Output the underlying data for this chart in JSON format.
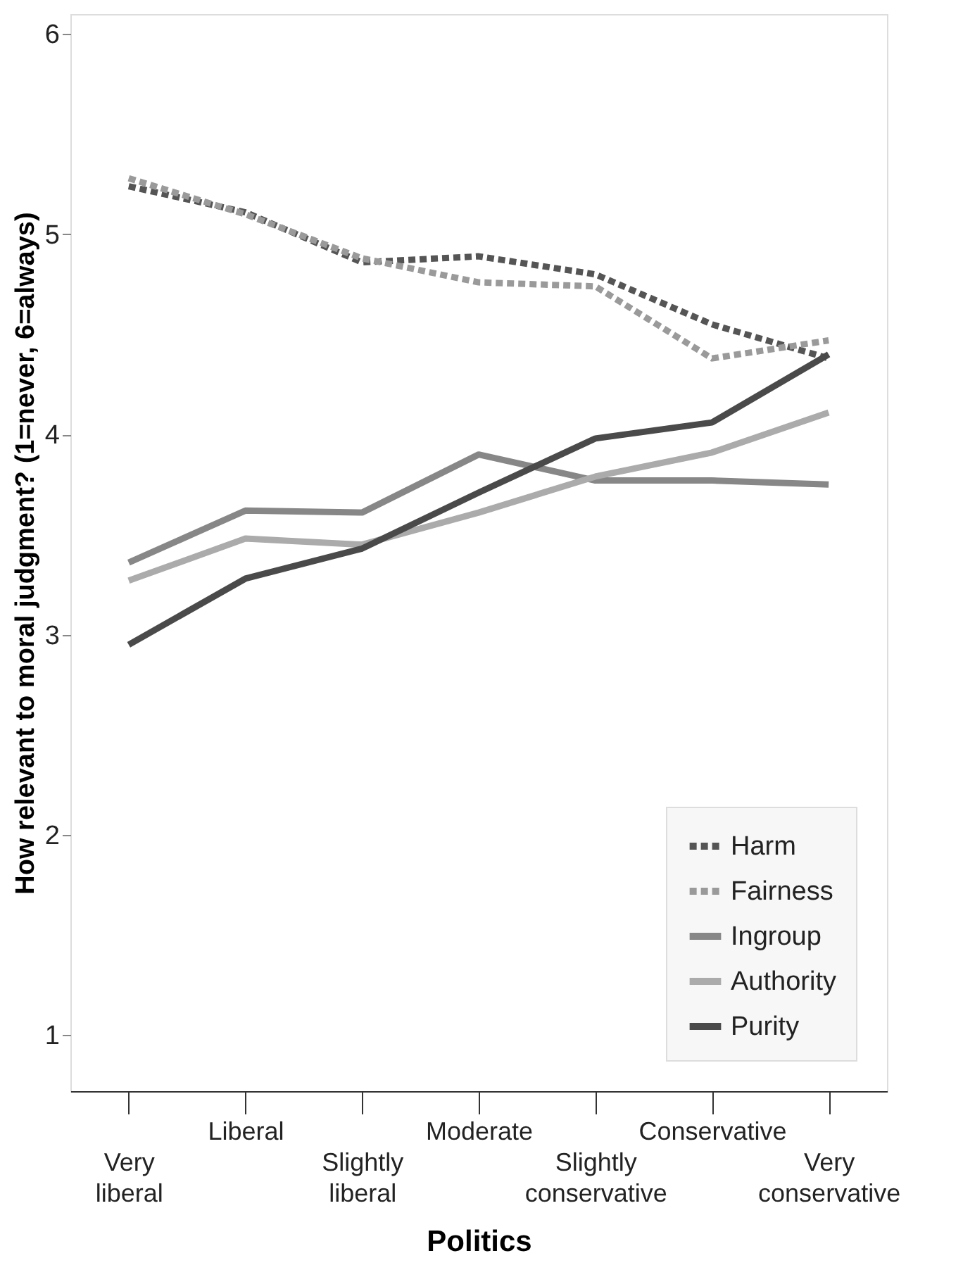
{
  "chart_data": {
    "type": "line",
    "xlabel": "Politics",
    "ylabel": "How relevant to moral judgment? (1=never, 6=always)",
    "categories": [
      "Very liberal",
      "Liberal",
      "Slightly liberal",
      "Moderate",
      "Slightly conservative",
      "Conservative",
      "Very conservative"
    ],
    "series": [
      {
        "name": "Harm",
        "color": "#555555",
        "line_style": "dotted",
        "values": [
          5.24,
          5.11,
          4.86,
          4.89,
          4.8,
          4.55,
          4.38
        ]
      },
      {
        "name": "Fairness",
        "color": "#9a9a9a",
        "line_style": "dotted",
        "values": [
          5.28,
          5.1,
          4.88,
          4.76,
          4.74,
          4.38,
          4.47
        ]
      },
      {
        "name": "Ingroup",
        "color": "#878787",
        "line_style": "solid",
        "values": [
          3.36,
          3.62,
          3.61,
          3.9,
          3.77,
          3.77,
          3.75
        ]
      },
      {
        "name": "Authority",
        "color": "#ababab",
        "line_style": "solid",
        "values": [
          3.27,
          3.48,
          3.45,
          3.61,
          3.79,
          3.91,
          4.11
        ]
      },
      {
        "name": "Purity",
        "color": "#4a4a4a",
        "line_style": "solid",
        "values": [
          2.95,
          3.28,
          3.43,
          3.71,
          3.98,
          4.06,
          4.4
        ]
      }
    ],
    "ylim": [
      0.72,
      6.1
    ],
    "yticks": [
      1,
      2,
      3,
      4,
      5,
      6
    ],
    "grid": false,
    "legend": "bottom right",
    "marker": "none"
  }
}
